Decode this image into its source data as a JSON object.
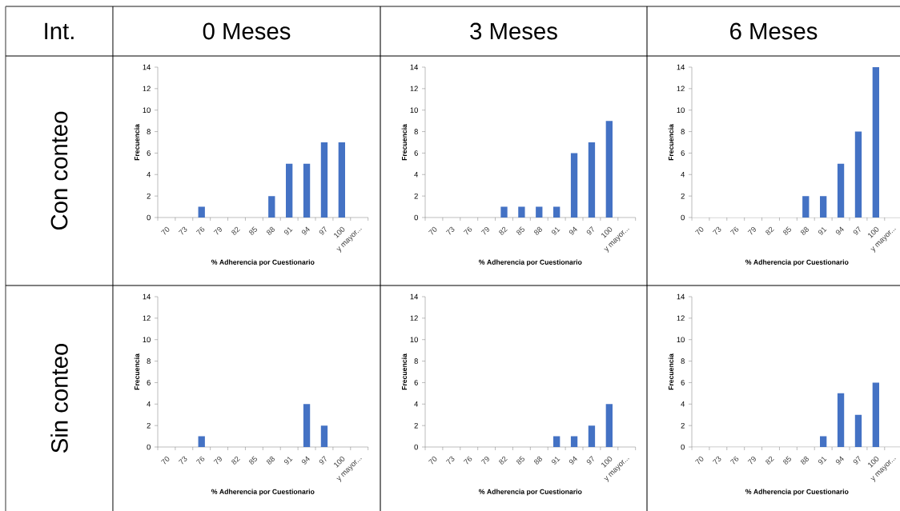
{
  "chart_data": [
    {
      "type": "other",
      "annotations": [
        "Int.",
        "0 Meses",
        "3 Meses",
        "6 Meses",
        "Con conteo",
        "Sin conteo"
      ]
    },
    {
      "type": "bar",
      "categories": [
        "70",
        "73",
        "76",
        "79",
        "82",
        "85",
        "88",
        "91",
        "94",
        "97",
        "100",
        "y mayor..."
      ],
      "values": [
        0,
        0,
        1,
        0,
        0,
        0,
        2,
        5,
        5,
        7,
        7,
        0
      ],
      "color": "#4472c4",
      "ylim": [
        0,
        14
      ],
      "yticks": [
        0,
        2,
        4,
        6,
        8,
        10,
        12,
        14
      ],
      "xlabel": "% Adherencia por Cuestionario",
      "ylabel": "Frecuencia"
    },
    {
      "type": "bar",
      "categories": [
        "70",
        "73",
        "76",
        "79",
        "82",
        "85",
        "88",
        "91",
        "94",
        "97",
        "100",
        "y mayor..."
      ],
      "values": [
        0,
        0,
        0,
        0,
        1,
        1,
        1,
        1,
        6,
        7,
        9,
        0
      ],
      "color": "#4472c4",
      "ylim": [
        0,
        14
      ],
      "yticks": [
        0,
        2,
        4,
        6,
        8,
        10,
        12,
        14
      ],
      "xlabel": "% Adherencia por Cuestionario",
      "ylabel": "Frecuencia"
    },
    {
      "type": "bar",
      "categories": [
        "70",
        "73",
        "76",
        "79",
        "82",
        "85",
        "88",
        "91",
        "94",
        "97",
        "100",
        "y mayor..."
      ],
      "values": [
        0,
        0,
        0,
        0,
        0,
        0,
        2,
        2,
        5,
        8,
        14,
        0
      ],
      "color": "#4472c4",
      "ylim": [
        0,
        14
      ],
      "yticks": [
        0,
        2,
        4,
        6,
        8,
        10,
        12,
        14
      ],
      "xlabel": "% Adherencia por Cuestionario",
      "ylabel": "Frecuencia"
    },
    {
      "type": "bar",
      "categories": [
        "70",
        "73",
        "76",
        "79",
        "82",
        "85",
        "88",
        "91",
        "94",
        "97",
        "100",
        "y mayor..."
      ],
      "values": [
        0,
        0,
        1,
        0,
        0,
        0,
        0,
        0,
        4,
        2,
        0,
        0
      ],
      "color": "#4472c4",
      "ylim": [
        0,
        14
      ],
      "yticks": [
        0,
        2,
        4,
        6,
        8,
        10,
        12,
        14
      ],
      "xlabel": "% Adherencia por Cuestionario",
      "ylabel": "Frecuencia"
    },
    {
      "type": "bar",
      "categories": [
        "70",
        "73",
        "76",
        "79",
        "82",
        "85",
        "88",
        "91",
        "94",
        "97",
        "100",
        "y mayor..."
      ],
      "values": [
        0,
        0,
        0,
        0,
        0,
        0,
        0,
        1,
        1,
        2,
        4,
        0
      ],
      "color": "#4472c4",
      "ylim": [
        0,
        14
      ],
      "yticks": [
        0,
        2,
        4,
        6,
        8,
        10,
        12,
        14
      ],
      "xlabel": "% Adherencia por Cuestionario",
      "ylabel": "Frecuencia"
    },
    {
      "type": "bar",
      "categories": [
        "70",
        "73",
        "76",
        "79",
        "82",
        "85",
        "88",
        "91",
        "94",
        "97",
        "100",
        "y mayor..."
      ],
      "values": [
        0,
        0,
        0,
        0,
        0,
        0,
        0,
        1,
        5,
        3,
        6,
        0
      ],
      "color": "#4472c4",
      "ylim": [
        0,
        14
      ],
      "yticks": [
        0,
        2,
        4,
        6,
        8,
        10,
        12,
        14
      ],
      "xlabel": "% Adherencia por Cuestionario",
      "ylabel": "Frecuencia"
    }
  ]
}
